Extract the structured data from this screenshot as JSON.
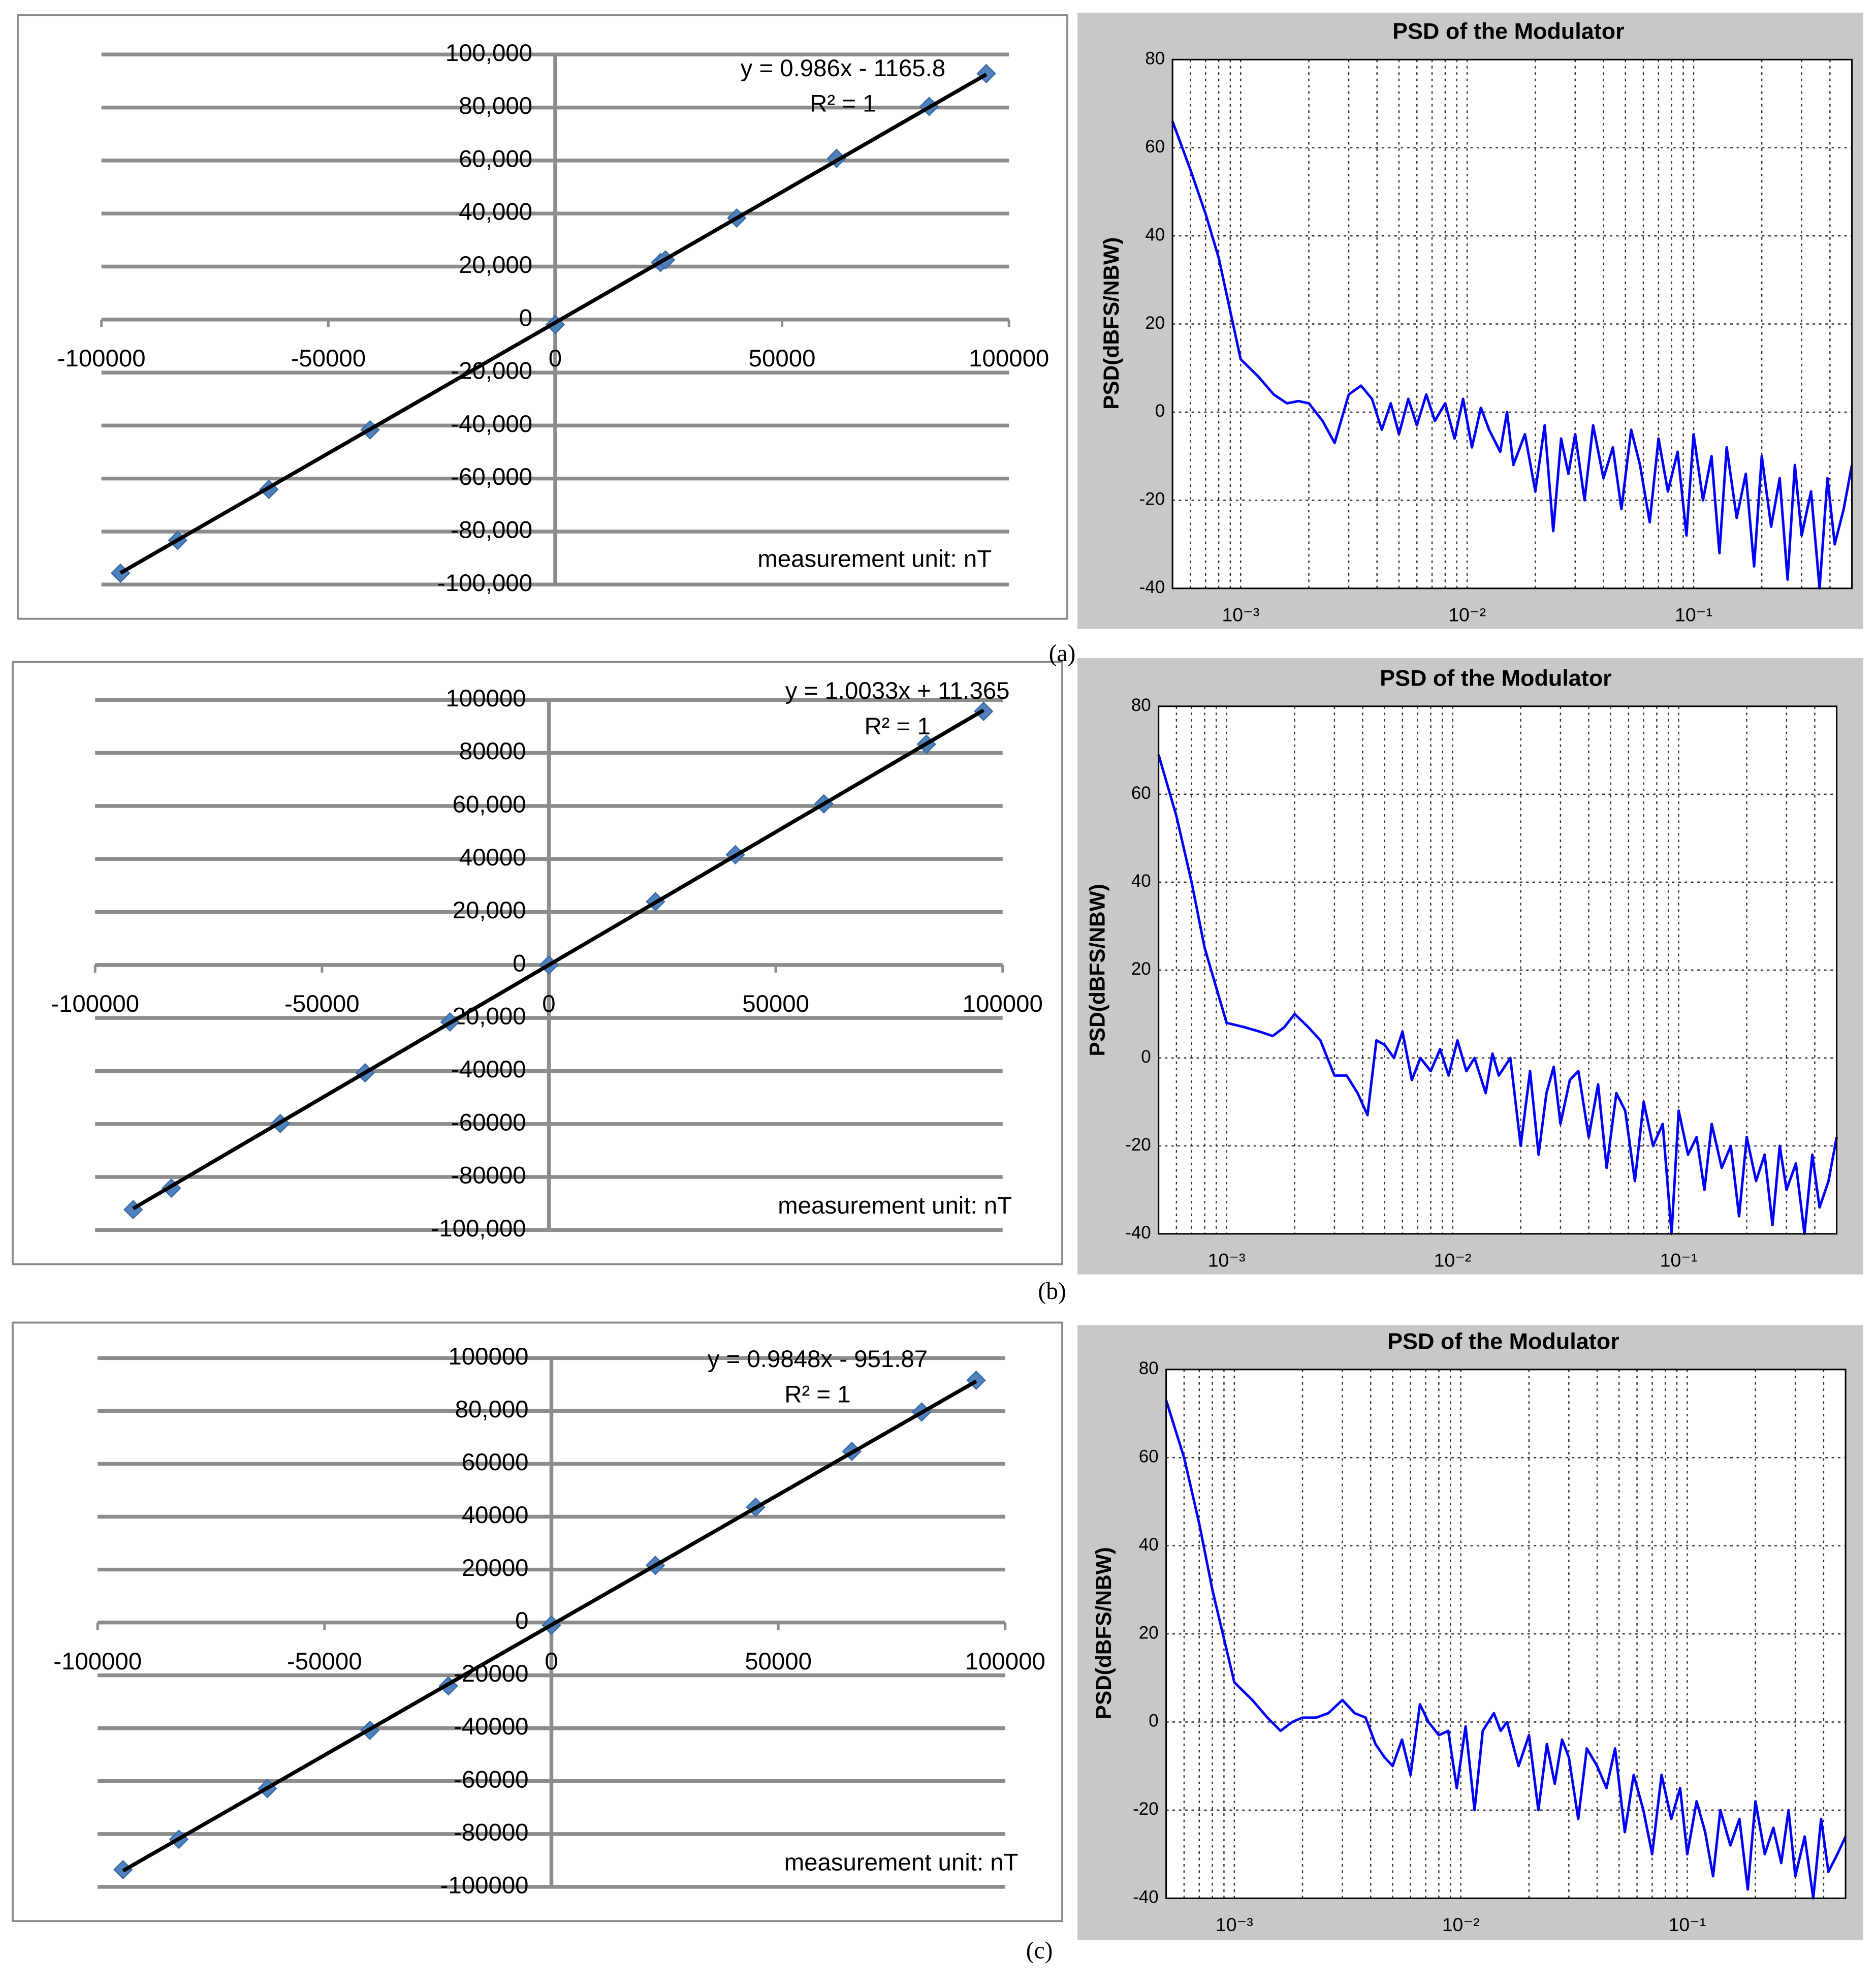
{
  "chart_data": [
    {
      "type": "scatter",
      "x": [
        -95800,
        -83200,
        -63100,
        -40800,
        0,
        23200,
        24300,
        40000,
        62000,
        82400,
        95000
      ],
      "values": [
        -95700,
        -83300,
        -64100,
        -41600,
        -1900,
        21500,
        22500,
        38300,
        60800,
        80400,
        92800
      ],
      "color": "#4f81bd",
      "xlim": [
        -100000,
        100000
      ],
      "xticks": [
        -100000,
        -50000,
        0,
        50000,
        100000
      ],
      "ylim": [
        -100000,
        100000
      ],
      "yticks": [
        {
          "value": 100000,
          "label": "100,000"
        },
        {
          "value": 80000,
          "label": "80,000"
        },
        {
          "value": 60000,
          "label": "60,000"
        },
        {
          "value": 40000,
          "label": "40,000"
        },
        {
          "value": 20000,
          "label": "20,000"
        },
        0,
        {
          "value": -20000,
          "label": "-20,000"
        },
        {
          "value": -40000,
          "label": "-40,000"
        },
        {
          "value": -60000,
          "label": "-60,000"
        },
        {
          "value": -80000,
          "label": "-80,000"
        },
        {
          "value": -100000,
          "label": "-100,000"
        }
      ],
      "grid": true,
      "trendline": {
        "slope": 0.986,
        "intercept": -1165.8,
        "label": "y = 0.986x - 1165.8",
        "color": "#000000"
      },
      "r_squared_label": "R² = 1",
      "annotation": "measurement unit: nT"
    },
    {
      "type": "line",
      "title": "PSD of the Modulator",
      "y_label": "PSD(dBFS/NBW)",
      "log_x": true,
      "grid": true,
      "minor_grid": true,
      "color": "#0000ff",
      "xlim": [
        0.0005,
        0.5
      ],
      "xticks": [
        {
          "value": 0.001,
          "label": "10⁻³"
        },
        {
          "value": 0.01,
          "label": "10⁻²"
        },
        {
          "value": 0.1,
          "label": "10⁻¹"
        }
      ],
      "ylim": [
        -40,
        80
      ],
      "yticks": [
        -40,
        -20,
        0,
        20,
        40,
        60,
        80
      ],
      "x": [
        0.0005,
        0.0006,
        0.0007,
        0.0008,
        0.001,
        0.0012,
        0.0014,
        0.0016,
        0.0018,
        0.002,
        0.0023,
        0.0026,
        0.003,
        0.0034,
        0.0038,
        0.0042,
        0.0046,
        0.005,
        0.0055,
        0.006,
        0.0066,
        0.0072,
        0.008,
        0.0088,
        0.0096,
        0.0105,
        0.0115,
        0.0125,
        0.014,
        0.015,
        0.016,
        0.018,
        0.02,
        0.022,
        0.024,
        0.026,
        0.028,
        0.03,
        0.033,
        0.036,
        0.04,
        0.044,
        0.048,
        0.053,
        0.058,
        0.064,
        0.07,
        0.077,
        0.085,
        0.093,
        0.1,
        0.11,
        0.12,
        0.13,
        0.14,
        0.155,
        0.17,
        0.185,
        0.2,
        0.22,
        0.24,
        0.26,
        0.28,
        0.3,
        0.33,
        0.36,
        0.39,
        0.42,
        0.46,
        0.5
      ],
      "values": [
        66,
        55,
        45,
        35,
        12,
        8,
        4,
        2,
        2.5,
        2,
        -2,
        -7,
        4,
        6,
        3,
        -4,
        2,
        -5,
        3,
        -3,
        4,
        -2,
        2,
        -6,
        3,
        -8,
        1,
        -4,
        -9,
        0,
        -12,
        -5,
        -18,
        -3,
        -27,
        -6,
        -14,
        -5,
        -20,
        -3,
        -15,
        -8,
        -22,
        -4,
        -12,
        -25,
        -6,
        -18,
        -9,
        -28,
        -5,
        -20,
        -10,
        -32,
        -8,
        -24,
        -14,
        -35,
        -10,
        -26,
        -15,
        -38,
        -12,
        -28,
        -18,
        -40,
        -15,
        -30,
        -22,
        -12
      ]
    },
    {
      "type": "scatter",
      "x": [
        -91600,
        -83200,
        -59200,
        -40500,
        -21800,
        0,
        23500,
        41100,
        60600,
        83200,
        95800
      ],
      "values": [
        -92300,
        -84200,
        -59800,
        -40700,
        -21500,
        0,
        23900,
        41600,
        60800,
        83300,
        95700
      ],
      "color": "#4f81bd",
      "xlim": [
        -100000,
        100000
      ],
      "xticks": [
        -100000,
        -50000,
        0,
        50000,
        100000
      ],
      "ylim": [
        -100000,
        100000
      ],
      "yticks": [
        {
          "value": 100000,
          "label": "100000"
        },
        {
          "value": 80000,
          "label": "80000"
        },
        {
          "value": 60000,
          "label": "60,000"
        },
        {
          "value": 40000,
          "label": "40000"
        },
        {
          "value": 20000,
          "label": "20,000"
        },
        0,
        {
          "value": -20000,
          "label": "-20,000"
        },
        {
          "value": -40000,
          "label": "-40000"
        },
        {
          "value": -60000,
          "label": "-60000"
        },
        {
          "value": -80000,
          "label": "-80000"
        },
        {
          "value": -100000,
          "label": "-100,000"
        }
      ],
      "grid": true,
      "trendline": {
        "slope": 1.0033,
        "intercept": 11.365,
        "label": "y = 1.0033x + 11.365",
        "color": "#000000"
      },
      "r_squared_label": "R² = 1",
      "annotation": "measurement unit: nT"
    },
    {
      "type": "line",
      "title": "PSD of the Modulator",
      "y_label": "PSD(dBFS/NBW)",
      "log_x": true,
      "grid": true,
      "minor_grid": true,
      "color": "#0000ff",
      "xlim": [
        0.0005,
        0.5
      ],
      "xticks": [
        {
          "value": 0.001,
          "label": "10⁻³"
        },
        {
          "value": 0.01,
          "label": "10⁻²"
        },
        {
          "value": 0.1,
          "label": "10⁻¹"
        }
      ],
      "ylim": [
        -40,
        80
      ],
      "yticks": [
        -40,
        -20,
        0,
        20,
        40,
        60,
        80
      ],
      "x": [
        0.0005,
        0.0006,
        0.0007,
        0.0008,
        0.001,
        0.0012,
        0.0014,
        0.0016,
        0.0018,
        0.002,
        0.0023,
        0.0026,
        0.003,
        0.0034,
        0.0038,
        0.0042,
        0.0046,
        0.005,
        0.0055,
        0.006,
        0.0066,
        0.0072,
        0.008,
        0.0088,
        0.0096,
        0.0105,
        0.0115,
        0.0125,
        0.014,
        0.015,
        0.016,
        0.018,
        0.02,
        0.022,
        0.024,
        0.026,
        0.028,
        0.03,
        0.033,
        0.036,
        0.04,
        0.044,
        0.048,
        0.053,
        0.058,
        0.064,
        0.07,
        0.077,
        0.085,
        0.093,
        0.1,
        0.11,
        0.12,
        0.13,
        0.14,
        0.155,
        0.17,
        0.185,
        0.2,
        0.22,
        0.24,
        0.26,
        0.28,
        0.3,
        0.33,
        0.36,
        0.39,
        0.42,
        0.46,
        0.5
      ],
      "values": [
        69,
        55,
        40,
        25,
        8,
        7,
        6,
        5,
        7,
        10,
        7,
        4,
        -4,
        -4,
        -8,
        -13,
        4,
        3,
        0,
        6,
        -5,
        0,
        -3,
        2,
        -4,
        4,
        -3,
        0,
        -8,
        1,
        -4,
        0,
        -20,
        -3,
        -22,
        -8,
        -2,
        -15,
        -5,
        -3,
        -18,
        -6,
        -25,
        -8,
        -12,
        -28,
        -10,
        -20,
        -15,
        -40,
        -12,
        -22,
        -18,
        -30,
        -15,
        -25,
        -20,
        -36,
        -18,
        -28,
        -22,
        -38,
        -20,
        -30,
        -24,
        -40,
        -22,
        -34,
        -28,
        -18
      ]
    },
    {
      "type": "scatter",
      "x": [
        -94400,
        -82100,
        -62600,
        -40000,
        -22700,
        0,
        22900,
        45000,
        66200,
        81600,
        93600
      ],
      "values": [
        -93500,
        -82000,
        -62800,
        -40800,
        -24000,
        -1000,
        21600,
        43600,
        64700,
        79600,
        91600
      ],
      "color": "#4f81bd",
      "xlim": [
        -100000,
        100000
      ],
      "xticks": [
        -100000,
        -50000,
        0,
        50000,
        100000
      ],
      "ylim": [
        -100000,
        100000
      ],
      "yticks": [
        {
          "value": 100000,
          "label": "100000"
        },
        {
          "value": 80000,
          "label": "80,000"
        },
        {
          "value": 60000,
          "label": "60000"
        },
        {
          "value": 40000,
          "label": "40000"
        },
        {
          "value": 20000,
          "label": "20000"
        },
        0,
        {
          "value": -20000,
          "label": "-20000"
        },
        {
          "value": -40000,
          "label": "-40000"
        },
        {
          "value": -60000,
          "label": "-60000"
        },
        {
          "value": -80000,
          "label": "-80000"
        },
        {
          "value": -100000,
          "label": "-100000"
        }
      ],
      "grid": true,
      "trendline": {
        "slope": 0.9848,
        "intercept": -951.87,
        "label": "y = 0.9848x - 951.87",
        "color": "#000000"
      },
      "r_squared_label": "R² = 1",
      "annotation": "measurement unit: nT"
    },
    {
      "type": "line",
      "title": "PSD of the Modulator",
      "y_label": "PSD(dBFS/NBW)",
      "log_x": true,
      "grid": true,
      "minor_grid": true,
      "color": "#0000ff",
      "xlim": [
        0.0005,
        0.5
      ],
      "xticks": [
        {
          "value": 0.001,
          "label": "10⁻³"
        },
        {
          "value": 0.01,
          "label": "10⁻²"
        },
        {
          "value": 0.1,
          "label": "10⁻¹"
        }
      ],
      "ylim": [
        -40,
        80
      ],
      "yticks": [
        -40,
        -20,
        0,
        20,
        40,
        60,
        80
      ],
      "x": [
        0.0005,
        0.0006,
        0.0007,
        0.0008,
        0.001,
        0.0012,
        0.0014,
        0.0016,
        0.0018,
        0.002,
        0.0023,
        0.0026,
        0.003,
        0.0034,
        0.0038,
        0.0042,
        0.0046,
        0.005,
        0.0055,
        0.006,
        0.0066,
        0.0072,
        0.008,
        0.0088,
        0.0096,
        0.0105,
        0.0115,
        0.0125,
        0.014,
        0.015,
        0.016,
        0.018,
        0.02,
        0.022,
        0.024,
        0.026,
        0.028,
        0.03,
        0.033,
        0.036,
        0.04,
        0.044,
        0.048,
        0.053,
        0.058,
        0.064,
        0.07,
        0.077,
        0.085,
        0.093,
        0.1,
        0.11,
        0.12,
        0.13,
        0.14,
        0.155,
        0.17,
        0.185,
        0.2,
        0.22,
        0.24,
        0.26,
        0.28,
        0.3,
        0.33,
        0.36,
        0.39,
        0.42,
        0.46,
        0.5
      ],
      "values": [
        73,
        60,
        45,
        30,
        9,
        5,
        1,
        -2,
        0,
        1,
        1,
        2,
        5,
        2,
        1,
        -5,
        -8,
        -10,
        -4,
        -12,
        4,
        0,
        -3,
        -2,
        -15,
        -1,
        -20,
        -2,
        2,
        -2,
        0,
        -10,
        -3,
        -20,
        -5,
        -14,
        -4,
        -8,
        -22,
        -6,
        -10,
        -15,
        -6,
        -25,
        -12,
        -20,
        -30,
        -12,
        -22,
        -15,
        -30,
        -18,
        -25,
        -35,
        -20,
        -28,
        -22,
        -38,
        -18,
        -30,
        -24,
        -32,
        -20,
        -35,
        -26,
        -40,
        -22,
        -34,
        -30,
        -26
      ]
    }
  ],
  "panel_labels": [
    "(a)",
    "(b)",
    "(c)"
  ]
}
